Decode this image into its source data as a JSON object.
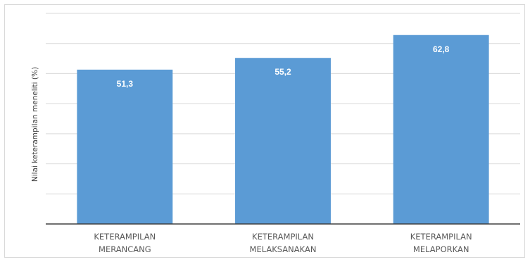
{
  "chart_data": {
    "type": "bar",
    "categories": [
      [
        "KETERAMPILAN",
        "MERANCANG"
      ],
      [
        "KETERAMPILAN",
        "MELAKSANAKAN"
      ],
      [
        "KETERAMPILAN",
        "MELAPORKAN"
      ]
    ],
    "values": [
      51.3,
      55.2,
      62.8
    ],
    "data_labels": [
      "51,3",
      "55,2",
      "62,8"
    ],
    "title": "",
    "xlabel": "",
    "ylabel": "Nilai keterampilan meneliti (%)",
    "ylim": [
      0,
      70
    ],
    "y_tick_step": 10,
    "show_y_tick_labels": false,
    "grid": true,
    "legend": "none",
    "bar_color": "#5b9bd5",
    "grid_color": "#d9d9d9",
    "axis_color": "#404040"
  }
}
